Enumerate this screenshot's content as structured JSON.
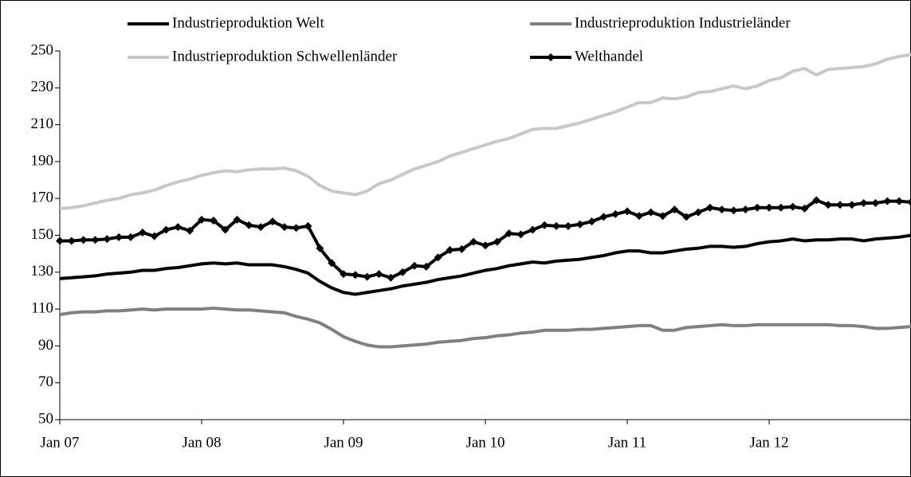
{
  "chart_data": {
    "type": "line",
    "categories": [
      "Jan 07",
      null,
      null,
      null,
      null,
      null,
      null,
      null,
      null,
      null,
      null,
      null,
      "Jan 08",
      null,
      null,
      null,
      null,
      null,
      null,
      null,
      null,
      null,
      null,
      null,
      "Jan 09",
      null,
      null,
      null,
      null,
      null,
      null,
      null,
      null,
      null,
      null,
      null,
      "Jan 10",
      null,
      null,
      null,
      null,
      null,
      null,
      null,
      null,
      null,
      null,
      null,
      "Jan 11",
      null,
      null,
      null,
      null,
      null,
      null,
      null,
      null,
      null,
      null,
      null,
      "Jan 12",
      null,
      null,
      null,
      null,
      null,
      null,
      null,
      null,
      null,
      null,
      null,
      null
    ],
    "ylim": [
      50,
      250
    ],
    "yticks": [
      50,
      70,
      90,
      110,
      130,
      150,
      170,
      190,
      210,
      230,
      250
    ],
    "series": [
      {
        "name": "Industrieproduktion Welt",
        "color": "#000000",
        "values": [
          126.5,
          127,
          127.5,
          128,
          129,
          129.5,
          130,
          131,
          131,
          132,
          132.5,
          133.5,
          134.5,
          135,
          134.5,
          135,
          134,
          134,
          134,
          133,
          131.5,
          129.5,
          125,
          121.5,
          119,
          118,
          119,
          120,
          121,
          122.5,
          123.5,
          124.5,
          126,
          127,
          128,
          129.5,
          131,
          132,
          133.5,
          134.5,
          135.5,
          135,
          136,
          136.5,
          137,
          138,
          139,
          140.5,
          141.5,
          141.5,
          140.5,
          140.5,
          141.5,
          142.5,
          143,
          144,
          144,
          143.5,
          144,
          145.5,
          146.5,
          147,
          148,
          147,
          147.5,
          147.5,
          148,
          148,
          147,
          148,
          148.5,
          149,
          150
        ]
      },
      {
        "name": "Industrieproduktion Industrieländer",
        "color": "#808080",
        "values": [
          107,
          108,
          108.5,
          108.5,
          109,
          109,
          109.5,
          110,
          109.5,
          110,
          110,
          110,
          110,
          110.5,
          110,
          109.5,
          109.5,
          109,
          108.5,
          108,
          106,
          104.5,
          102.5,
          99,
          95,
          92.5,
          90.5,
          89.5,
          89.5,
          90,
          90.5,
          91,
          92,
          92.5,
          93,
          94,
          94.5,
          95.5,
          96,
          97,
          97.5,
          98.5,
          98.5,
          98.5,
          99,
          99,
          99.5,
          100,
          100.5,
          101,
          101,
          98.5,
          98.5,
          100,
          100.5,
          101,
          101.5,
          101,
          101,
          101.5,
          101.5,
          101.5,
          101.5,
          101.5,
          101.5,
          101.5,
          101,
          101,
          100.5,
          99.5,
          99.5,
          100,
          100.5
        ]
      },
      {
        "name": "Industrieproduktion Schwellenländer",
        "color": "#c8c8c8",
        "values": [
          164.5,
          165,
          166,
          167.5,
          169,
          170,
          172,
          173,
          174.5,
          177,
          179,
          180.5,
          182.5,
          184,
          185,
          184.5,
          185.5,
          186,
          186,
          186.5,
          185,
          182,
          177,
          174,
          173,
          172,
          174,
          178,
          180,
          183,
          186,
          188,
          190,
          193,
          195,
          197,
          199,
          201,
          202.5,
          205,
          207.5,
          208,
          208,
          209.5,
          211,
          213,
          215,
          217,
          219.5,
          222,
          222,
          224.5,
          224,
          225,
          227.5,
          228,
          229.5,
          231,
          229.5,
          231,
          234,
          235.5,
          239,
          240.5,
          237,
          240,
          240.5,
          241,
          241.5,
          243,
          245.5,
          247,
          248
        ]
      },
      {
        "name": "Welthandel",
        "color": "#000000",
        "values": [
          147,
          147,
          147.5,
          147.5,
          148,
          149,
          149,
          151.5,
          149.5,
          153,
          154.5,
          152.5,
          158.5,
          158,
          153,
          158.5,
          155.5,
          154.5,
          157.5,
          154.5,
          154,
          155,
          143,
          135,
          129,
          128.5,
          127.5,
          129,
          127,
          130,
          133.5,
          133,
          138,
          142,
          142.5,
          146.5,
          144.5,
          146.5,
          151,
          150.5,
          153,
          155.5,
          155,
          155,
          156,
          157.5,
          160,
          161.5,
          163,
          160.5,
          162.5,
          160.5,
          164,
          160,
          162.5,
          165,
          164,
          163.5,
          164,
          165,
          165,
          165,
          165.5,
          164.5,
          169,
          166.5,
          166.5,
          166.5,
          167.5,
          167.5,
          168.5,
          168.5,
          168
        ]
      }
    ]
  }
}
